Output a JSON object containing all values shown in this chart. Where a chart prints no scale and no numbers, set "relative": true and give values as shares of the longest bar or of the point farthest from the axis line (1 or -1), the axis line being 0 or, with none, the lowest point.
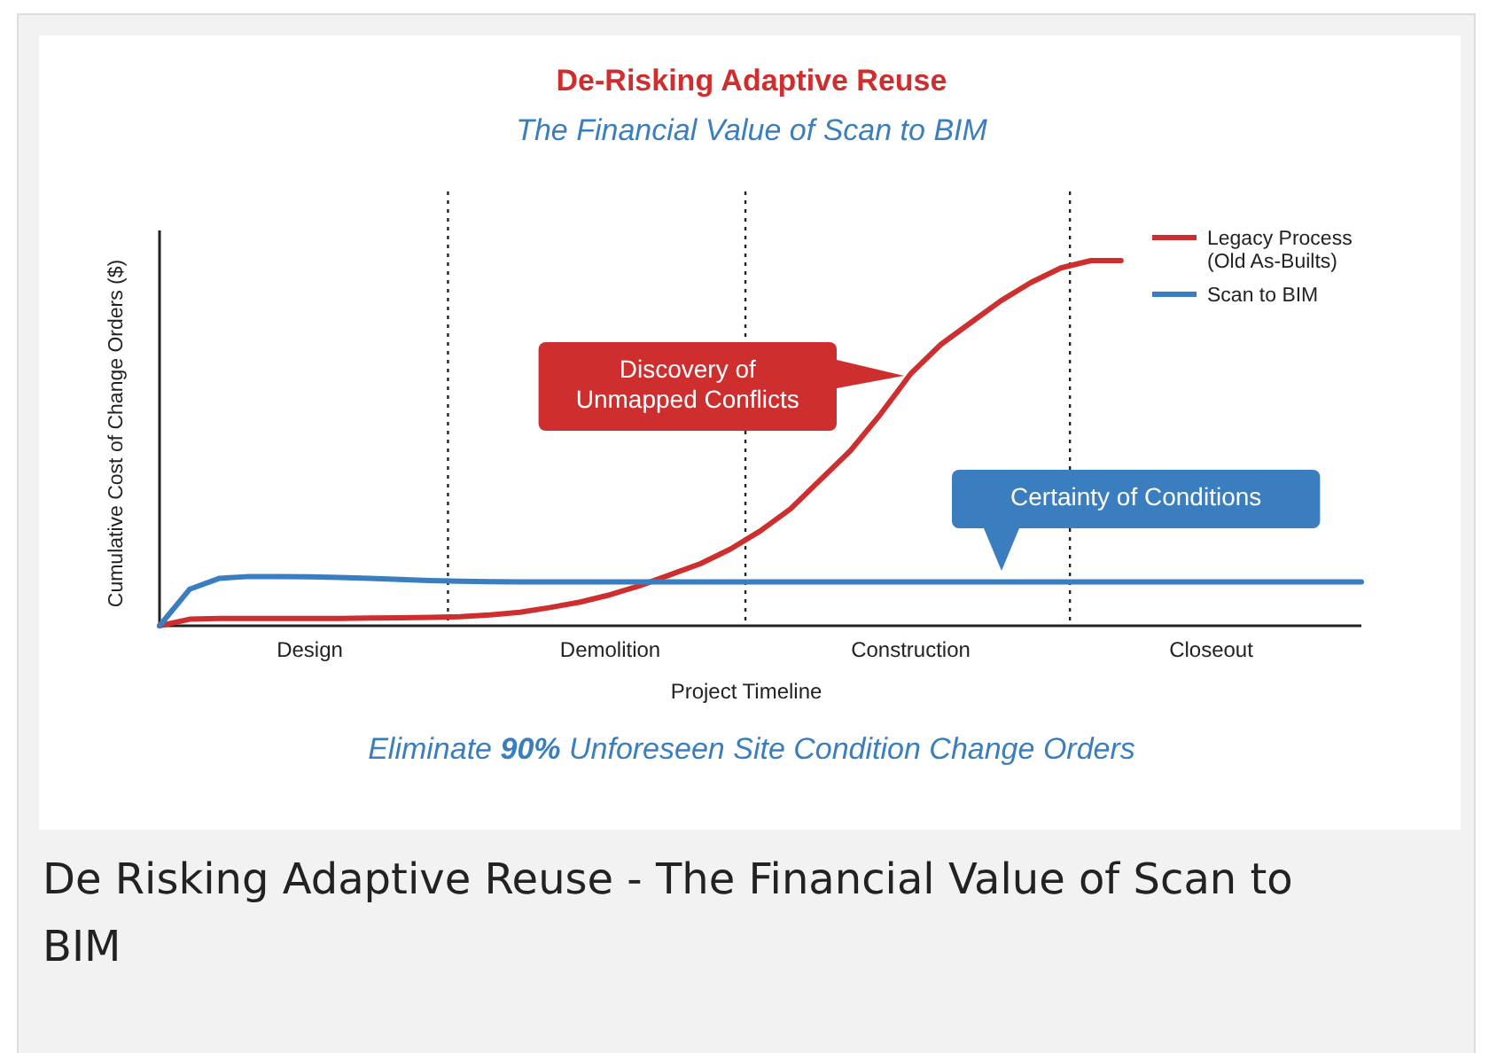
{
  "chart_data": {
    "type": "line",
    "title": "De-Risking Adaptive Reuse",
    "subtitle": "The Financial Value of Scan to BIM",
    "xlabel": "Project Timeline",
    "ylabel": "Cumulative Cost of Change Orders ($)",
    "relative": true,
    "categories": [
      null,
      null,
      null,
      null,
      null,
      "Design",
      null,
      null,
      null,
      null,
      null,
      null,
      null,
      null,
      null,
      "Demolition",
      null,
      null,
      null,
      null,
      null,
      null,
      null,
      null,
      null,
      "Construction",
      null,
      null,
      null,
      null,
      null,
      null,
      null,
      null,
      null,
      "Closeout",
      null,
      null,
      null,
      null,
      null
    ],
    "series": [
      {
        "name": "Legacy Process (Old As-Builts)",
        "color": "#cf2e2e",
        "values": [
          0,
          0.018,
          0.02,
          0.02,
          0.02,
          0.02,
          0.02,
          0.021,
          0.022,
          0.023,
          0.025,
          0.03,
          0.037,
          0.05,
          0.065,
          0.085,
          0.11,
          0.14,
          0.17,
          0.21,
          0.26,
          0.32,
          0.4,
          0.48,
          0.58,
          0.69,
          0.77,
          0.83,
          0.89,
          0.94,
          0.98,
          1,
          1,
          null,
          null,
          null,
          null,
          null,
          null,
          null,
          null
        ]
      },
      {
        "name": "Scan to BIM",
        "color": "#3a7ebf",
        "values": [
          0,
          0.1,
          0.13,
          0.135,
          0.135,
          0.134,
          0.132,
          0.13,
          0.127,
          0.124,
          0.122,
          0.121,
          0.12,
          0.12,
          0.12,
          0.12,
          0.12,
          0.12,
          0.12,
          0.12,
          0.12,
          0.12,
          0.12,
          0.12,
          0.12,
          0.12,
          0.12,
          0.12,
          0.12,
          0.12,
          0.12,
          0.12,
          0.12,
          0.12,
          0.12,
          0.12,
          0.12,
          0.12,
          0.12,
          0.12,
          0.12
        ]
      }
    ],
    "legend": "top right",
    "line_style": "solid",
    "marker": "none",
    "annotations": [
      "Discovery of Unmapped Conflicts",
      "Certainty of Conditions",
      "Eliminate 90% Unforeseen Site Condition Change Orders",
      "De Risking Adaptive Reuse - The Financial Value of Scan to BIM"
    ]
  }
}
